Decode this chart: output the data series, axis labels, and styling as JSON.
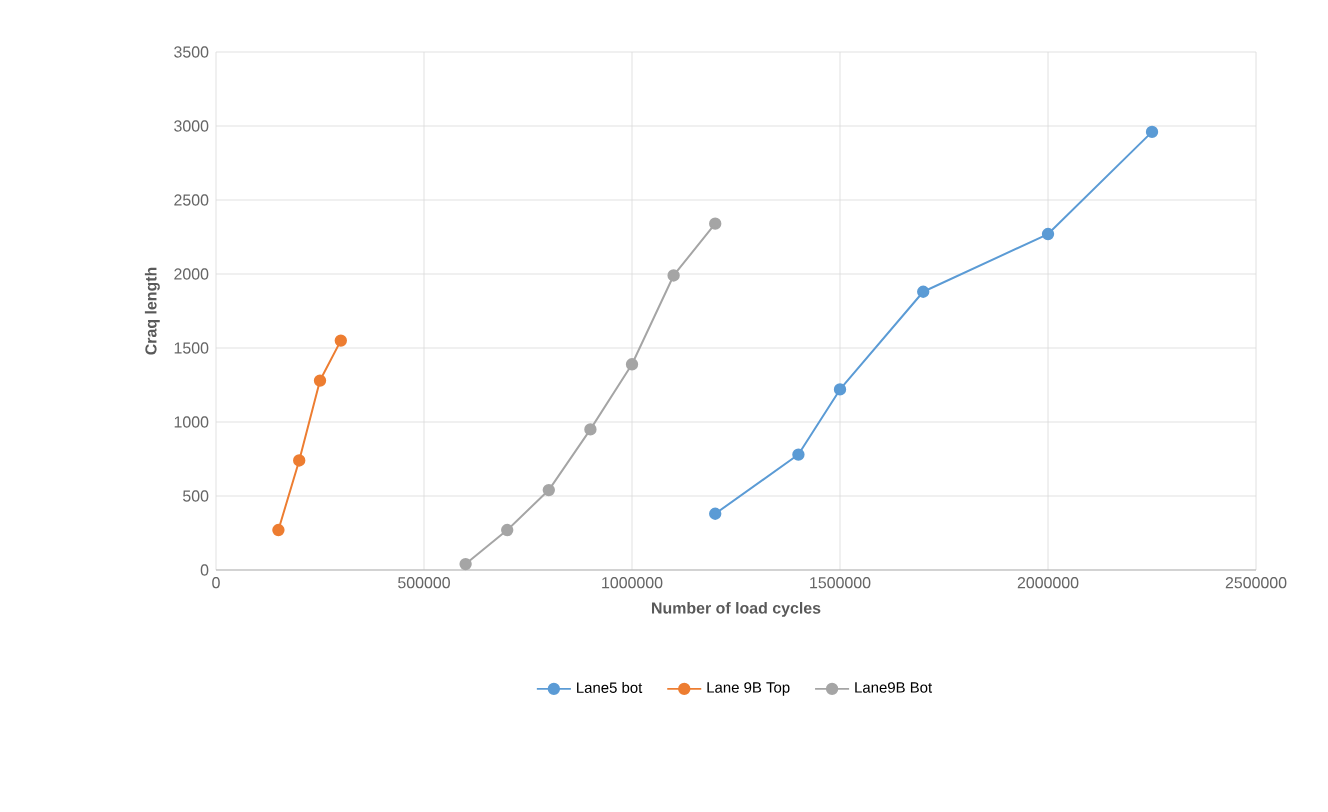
{
  "chart_data": {
    "type": "line",
    "xlabel": "Number of load cycles",
    "ylabel": "Craq length",
    "xlim": [
      0,
      2500000
    ],
    "xticks": [
      0,
      500000,
      1000000,
      1500000,
      2000000,
      2500000
    ],
    "ylim": [
      0,
      3500
    ],
    "yticks": [
      0,
      500,
      1000,
      1500,
      2000,
      2500,
      3000,
      3500
    ],
    "grid": true,
    "legend": "bottom",
    "marker": "circle",
    "line_style": "solid",
    "series": [
      {
        "name": "Lane5 bot",
        "color": "#5b9bd5",
        "x": [
          1200000,
          1400000,
          1500000,
          1700000,
          2000000,
          2250000
        ],
        "values": [
          380,
          780,
          1220,
          1880,
          2270,
          2960
        ]
      },
      {
        "name": "Lane 9B Top",
        "color": "#ed7d31",
        "x": [
          150000,
          200000,
          250000,
          300000
        ],
        "values": [
          270,
          740,
          1280,
          1550
        ]
      },
      {
        "name": "Lane9B Bot",
        "color": "#a5a5a5",
        "x": [
          600000,
          700000,
          800000,
          900000,
          1000000,
          1100000,
          1200000
        ],
        "values": [
          40,
          270,
          540,
          950,
          1390,
          1990,
          2340
        ]
      }
    ]
  }
}
